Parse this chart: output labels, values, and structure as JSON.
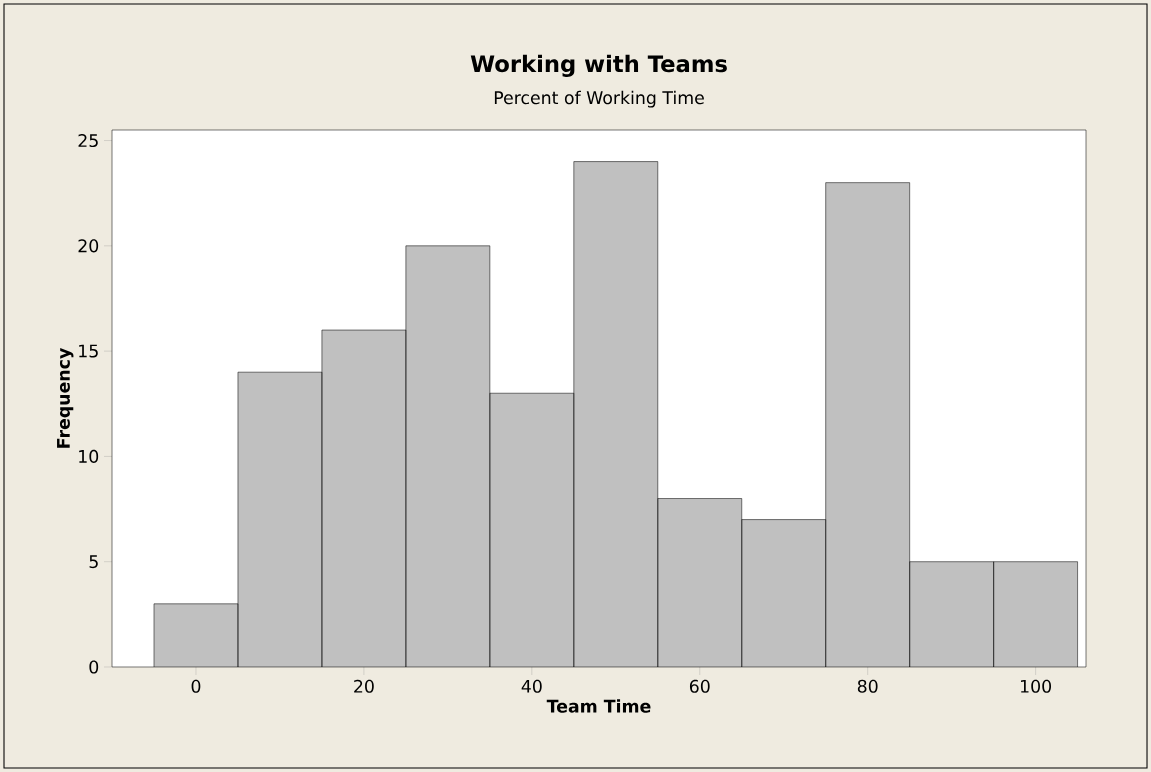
{
  "chart_data": {
    "type": "histogram",
    "title": "Working with Teams",
    "subtitle": "Percent of Working Time",
    "xlabel": "Team Time",
    "ylabel": "Frequency",
    "bins": [
      -5,
      5,
      15,
      25,
      35,
      45,
      55,
      65,
      75,
      85,
      95,
      105
    ],
    "values": [
      3,
      14,
      16,
      20,
      13,
      24,
      8,
      7,
      23,
      5,
      5
    ],
    "color": "#c0c0c0",
    "xlim": [
      -10,
      106
    ],
    "ylim": [
      0,
      25.5
    ],
    "xticks": [
      0,
      20,
      40,
      60,
      80,
      100
    ],
    "yticks": [
      0,
      5,
      10,
      15,
      20,
      25
    ]
  }
}
